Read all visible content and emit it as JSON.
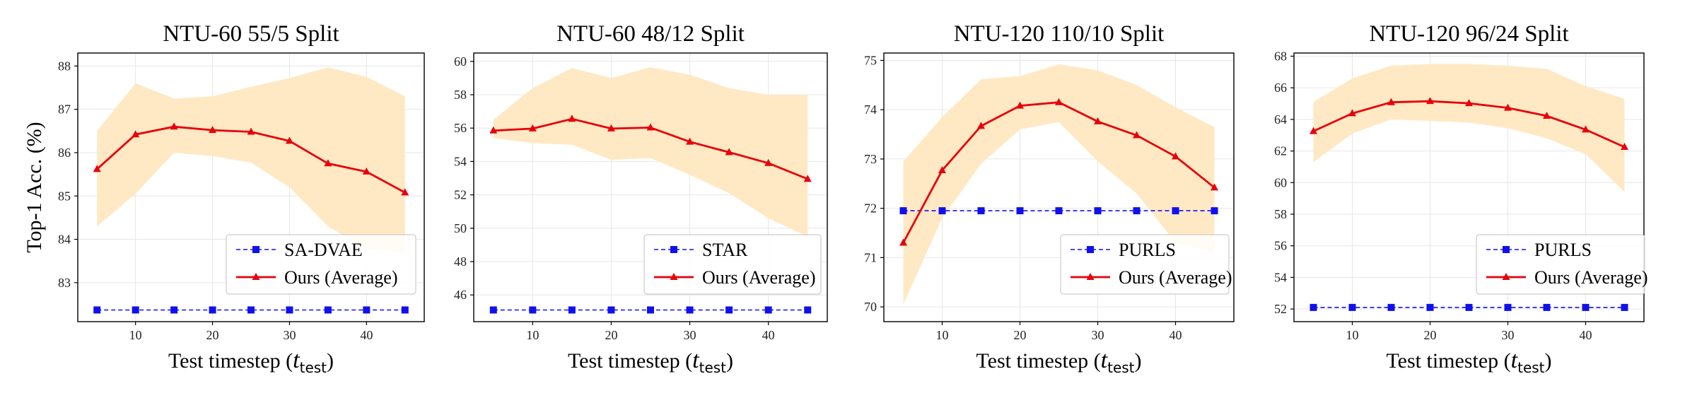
{
  "colors": {
    "ours": "#e8000b",
    "baseline": "#1010ee",
    "band": "#ffe9c4",
    "grid": "#e6e6e6"
  },
  "chart_data": [
    {
      "type": "line",
      "title": "NTU-60 55/5 Split",
      "xlabel": "Test timestep (",
      "xlabel_math": "t",
      "xlabel_sub": "test",
      "ylabel": "Top-1 Acc. (%)",
      "xlim": [
        2.5,
        47.5
      ],
      "ylim": [
        82.1,
        88.3
      ],
      "xticks": [
        10,
        20,
        30,
        40
      ],
      "yticks": [
        83,
        84,
        85,
        86,
        87,
        88
      ],
      "grid": true,
      "legend_position": "lower-right",
      "x": [
        5,
        10,
        15,
        20,
        25,
        30,
        35,
        40,
        45
      ],
      "series": [
        {
          "name": "SA-DVAE",
          "style": "dashed-square",
          "values": [
            82.37,
            82.37,
            82.37,
            82.37,
            82.37,
            82.37,
            82.37,
            82.37,
            82.37
          ]
        },
        {
          "name": "Ours (Average)",
          "style": "solid-triangle",
          "values": [
            85.62,
            86.42,
            86.6,
            86.52,
            86.48,
            86.27,
            85.75,
            85.56,
            85.08
          ],
          "band_upper": [
            86.5,
            87.6,
            87.25,
            87.3,
            87.52,
            87.72,
            87.97,
            87.75,
            87.3
          ],
          "band_lower": [
            84.3,
            85.05,
            86.0,
            85.92,
            85.77,
            85.2,
            84.3,
            83.78,
            83.7
          ]
        }
      ]
    },
    {
      "type": "line",
      "title": "NTU-60 48/12 Split",
      "xlabel": "Test timestep (",
      "xlabel_math": "t",
      "xlabel_sub": "test",
      "ylabel": "",
      "xlim": [
        2.5,
        47.5
      ],
      "ylim": [
        44.4,
        60.5
      ],
      "xticks": [
        10,
        20,
        30,
        40
      ],
      "yticks": [
        46,
        48,
        50,
        52,
        54,
        56,
        58,
        60
      ],
      "grid": true,
      "legend_position": "lower-right",
      "x": [
        5,
        10,
        15,
        20,
        25,
        30,
        35,
        40,
        45
      ],
      "series": [
        {
          "name": "STAR",
          "style": "dashed-square",
          "values": [
            45.1,
            45.1,
            45.1,
            45.1,
            45.1,
            45.1,
            45.1,
            45.1,
            45.1
          ]
        },
        {
          "name": "Ours (Average)",
          "style": "solid-triangle",
          "values": [
            55.85,
            55.97,
            56.55,
            55.97,
            56.03,
            55.18,
            54.55,
            53.9,
            52.95
          ],
          "band_upper": [
            56.5,
            58.4,
            59.6,
            59.0,
            59.65,
            59.2,
            58.4,
            58.0,
            58.0
          ],
          "band_lower": [
            55.4,
            55.1,
            55.0,
            54.1,
            54.2,
            53.2,
            52.1,
            50.6,
            49.5
          ]
        }
      ]
    },
    {
      "type": "line",
      "title": "NTU-120 110/10 Split",
      "xlabel": "Test timestep (",
      "xlabel_math": "t",
      "xlabel_sub": "test",
      "ylabel": "",
      "xlim": [
        2.5,
        47.5
      ],
      "ylim": [
        69.7,
        75.15
      ],
      "xticks": [
        10,
        20,
        30,
        40
      ],
      "yticks": [
        70,
        71,
        72,
        73,
        74,
        75
      ],
      "grid": true,
      "legend_position": "lower-right",
      "x": [
        5,
        10,
        15,
        20,
        25,
        30,
        35,
        40,
        45
      ],
      "series": [
        {
          "name": "PURLS",
          "style": "dashed-square",
          "values": [
            71.95,
            71.95,
            71.95,
            71.95,
            71.95,
            71.95,
            71.95,
            71.95,
            71.95
          ]
        },
        {
          "name": "Ours (Average)",
          "style": "solid-triangle",
          "values": [
            71.3,
            72.77,
            73.67,
            74.08,
            74.15,
            73.76,
            73.48,
            73.05,
            72.42
          ],
          "band_upper": [
            72.95,
            73.85,
            74.62,
            74.68,
            74.92,
            74.8,
            74.5,
            74.05,
            73.65
          ],
          "band_lower": [
            70.05,
            71.8,
            72.9,
            73.6,
            73.75,
            72.95,
            72.3,
            71.3,
            71.1
          ]
        }
      ]
    },
    {
      "type": "line",
      "title": "NTU-120 96/24 Split",
      "xlabel": "Test timestep (",
      "xlabel_math": "t",
      "xlabel_sub": "test",
      "ylabel": "",
      "xlim": [
        2.5,
        47.5
      ],
      "ylim": [
        51.2,
        68.2
      ],
      "xticks": [
        10,
        20,
        30,
        40
      ],
      "yticks": [
        52,
        54,
        56,
        58,
        60,
        62,
        64,
        66,
        68
      ],
      "grid": true,
      "legend_position": "lower-right",
      "x": [
        5,
        10,
        15,
        20,
        25,
        30,
        35,
        40,
        45
      ],
      "series": [
        {
          "name": "PURLS",
          "style": "dashed-square",
          "values": [
            52.1,
            52.1,
            52.1,
            52.1,
            52.1,
            52.1,
            52.1,
            52.1,
            52.1
          ]
        },
        {
          "name": "Ours (Average)",
          "style": "solid-triangle",
          "values": [
            63.25,
            64.38,
            65.08,
            65.15,
            65.02,
            64.73,
            64.22,
            63.35,
            62.25
          ],
          "band_upper": [
            65.1,
            66.6,
            67.4,
            67.5,
            67.5,
            67.4,
            67.2,
            66.1,
            65.3
          ],
          "band_lower": [
            61.3,
            63.1,
            64.0,
            63.9,
            63.8,
            63.45,
            62.8,
            61.8,
            59.4
          ]
        }
      ]
    }
  ]
}
